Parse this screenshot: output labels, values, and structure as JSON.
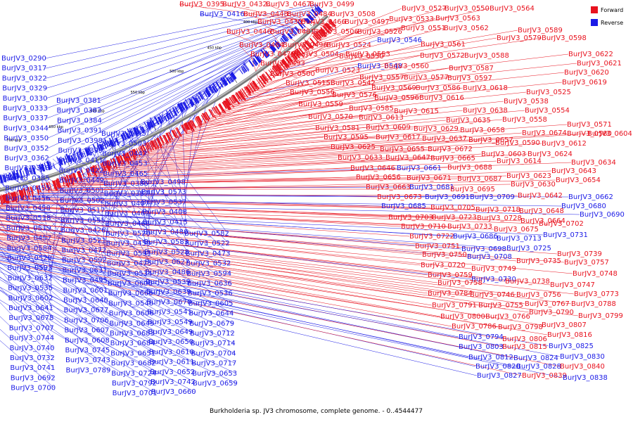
{
  "caption": "Burkholderia sp. JV3 chromosome, complete genome. - 0..4544477",
  "legend": [
    {
      "label": "Forward",
      "color": "#e8121e"
    },
    {
      "label": "Reverse",
      "color": "#1a1ae6"
    }
  ],
  "ticks": [
    "350 kbp",
    "400 kbp",
    "450 kbp",
    "500 kbp",
    "550 kbp",
    "600 kbp",
    "650 kbp",
    "700 kbp",
    "750 kbp",
    "800 kbp",
    "850 kbp",
    "900 kbp"
  ],
  "labels_right": [
    {
      "t": "BurJV3_0395",
      "s": "f"
    },
    {
      "t": "BurJV3_0432",
      "s": "f"
    },
    {
      "t": "BurJV3_0467",
      "s": "f"
    },
    {
      "t": "BurJV3_0499",
      "s": "f"
    },
    {
      "t": "BurJV3_0416",
      "s": "r"
    },
    {
      "t": "BurJV3_0448",
      "s": "f"
    },
    {
      "t": "BurJV3_0484",
      "s": "f"
    },
    {
      "t": "BurJV3_0508",
      "s": "f"
    },
    {
      "t": "BurJV3_0527",
      "s": "f"
    },
    {
      "t": "BurJV3_0550",
      "s": "f"
    },
    {
      "t": "BurJV3_0564",
      "s": "f"
    },
    {
      "t": "BurJV3_0430",
      "s": "f"
    },
    {
      "t": "BurJV3_0466",
      "s": "f"
    },
    {
      "t": "BurJV3_0497",
      "s": "f"
    },
    {
      "t": "BurJV3_0533",
      "s": "f"
    },
    {
      "t": "BurJV3_0563",
      "s": "f"
    },
    {
      "t": "BurJV3_0446",
      "s": "f"
    },
    {
      "t": "BurJV3_0481",
      "s": "f"
    },
    {
      "t": "BurJV3_0506",
      "s": "f"
    },
    {
      "t": "BurJV3_0526",
      "s": "f"
    },
    {
      "t": "BurJV3_0551",
      "s": "f"
    },
    {
      "t": "BurJV3_0562",
      "s": "f"
    },
    {
      "t": "BurJV3_0589",
      "s": "f"
    },
    {
      "t": "BurJV3_0546",
      "s": "r"
    },
    {
      "t": "BurJV3_0579",
      "s": "f"
    },
    {
      "t": "BurJV3_0598",
      "s": "f"
    },
    {
      "t": "BurJV3_0464",
      "s": "f"
    },
    {
      "t": "BurJV3_0496",
      "s": "f"
    },
    {
      "t": "BurJV3_0524",
      "s": "f"
    },
    {
      "t": "BurJV3_0561",
      "s": "f"
    },
    {
      "t": "BurJV3_0479",
      "s": "f"
    },
    {
      "t": "BurJV3_0504",
      "s": "f"
    },
    {
      "t": "BurJV3_0553",
      "s": "f"
    },
    {
      "t": "BurJV3_0622",
      "s": "f"
    },
    {
      "t": "BurJV3_0530",
      "s": "f"
    },
    {
      "t": "BurJV3_0572",
      "s": "f"
    },
    {
      "t": "BurJV3_0588",
      "s": "f"
    },
    {
      "t": "BurJV3_0621",
      "s": "f"
    },
    {
      "t": "BurJV3_0493",
      "s": "f"
    },
    {
      "t": "BurJV3_0548",
      "s": "r"
    },
    {
      "t": "BurJV3_0560",
      "s": "f"
    },
    {
      "t": "BurJV3_0587",
      "s": "f"
    },
    {
      "t": "BurJV3_0620",
      "s": "f"
    },
    {
      "t": "BurJV3_0500",
      "s": "f"
    },
    {
      "t": "BurJV3_0523",
      "s": "f"
    },
    {
      "t": "BurJV3_0557",
      "s": "f"
    },
    {
      "t": "BurJV3_0577",
      "s": "f"
    },
    {
      "t": "BurJV3_0597",
      "s": "f"
    },
    {
      "t": "BurJV3_0619",
      "s": "f"
    },
    {
      "t": "BurJV3_0515",
      "s": "f"
    },
    {
      "t": "BurJV3_0542",
      "s": "f"
    },
    {
      "t": "BurJV3_0569",
      "s": "f"
    },
    {
      "t": "BurJV3_0586",
      "s": "f"
    },
    {
      "t": "BurJV3_0618",
      "s": "f"
    },
    {
      "t": "BurJV3_0525",
      "s": "f"
    },
    {
      "t": "BurJV3_0556",
      "s": "f"
    },
    {
      "t": "BurJV3_0576",
      "s": "f"
    },
    {
      "t": "BurJV3_0596",
      "s": "f"
    },
    {
      "t": "BurJV3_0616",
      "s": "f"
    },
    {
      "t": "BurJV3_0538",
      "s": "f"
    },
    {
      "t": "BurJV3_0559",
      "s": "f"
    },
    {
      "t": "BurJV3_0585",
      "s": "f"
    },
    {
      "t": "BurJV3_0615",
      "s": "f"
    },
    {
      "t": "BurJV3_0638",
      "s": "f"
    },
    {
      "t": "BurJV3_0554",
      "s": "f"
    },
    {
      "t": "BurJV3_0570",
      "s": "f"
    },
    {
      "t": "BurJV3_0613",
      "s": "f"
    },
    {
      "t": "BurJV3_0635",
      "s": "f"
    },
    {
      "t": "BurJV3_0558",
      "s": "f"
    },
    {
      "t": "BurJV3_0581",
      "s": "f"
    },
    {
      "t": "BurJV3_0609",
      "s": "f"
    },
    {
      "t": "BurJV3_0629",
      "s": "f"
    },
    {
      "t": "BurJV3_0658",
      "s": "f"
    },
    {
      "t": "BurJV3_0571",
      "s": "f"
    },
    {
      "t": "BurJV3_0595",
      "s": "f"
    },
    {
      "t": "BurJV3_0617",
      "s": "f"
    },
    {
      "t": "BurJV3_0637",
      "s": "f"
    },
    {
      "t": "BurJV3_0657",
      "s": "f"
    },
    {
      "t": "BurJV3_0674",
      "s": "f"
    },
    {
      "t": "BurJV3_0580",
      "s": "f"
    },
    {
      "t": "BurJV3_0604",
      "s": "f"
    },
    {
      "t": "BurJV3_0625",
      "s": "f"
    },
    {
      "t": "BurJV3_0655",
      "s": "f"
    },
    {
      "t": "BurJV3_0672",
      "s": "f"
    },
    {
      "t": "BurJV3_0590",
      "s": "f"
    },
    {
      "t": "BurJV3_0612",
      "s": "f"
    },
    {
      "t": "BurJV3_0633",
      "s": "f"
    },
    {
      "t": "BurJV3_0647",
      "s": "f"
    },
    {
      "t": "BurJV3_0665",
      "s": "f"
    },
    {
      "t": "BurJV3_0603",
      "s": "f"
    },
    {
      "t": "BurJV3_0624",
      "s": "f"
    },
    {
      "t": "BurJV3_0646",
      "s": "f"
    },
    {
      "t": "BurJV3_0661",
      "s": "r"
    },
    {
      "t": "BurJV3_0688",
      "s": "f"
    },
    {
      "t": "BurJV3_0614",
      "s": "f"
    },
    {
      "t": "BurJV3_0634",
      "s": "f"
    },
    {
      "t": "BurJV3_0656",
      "s": "f"
    },
    {
      "t": "BurJV3_0671",
      "s": "f"
    },
    {
      "t": "BurJV3_0687",
      "s": "f"
    },
    {
      "t": "BurJV3_0623",
      "s": "f"
    },
    {
      "t": "BurJV3_0643",
      "s": "f"
    },
    {
      "t": "BurJV3_0663",
      "s": "f"
    },
    {
      "t": "BurJV3_0681",
      "s": "r"
    },
    {
      "t": "BurJV3_0695",
      "s": "f"
    },
    {
      "t": "BurJV3_0630",
      "s": "f"
    },
    {
      "t": "BurJV3_0654",
      "s": "f"
    },
    {
      "t": "BurJV3_0673",
      "s": "f"
    },
    {
      "t": "BurJV3_0691",
      "s": "r"
    },
    {
      "t": "BurJV3_0709",
      "s": "r"
    },
    {
      "t": "BurJV3_0642",
      "s": "f"
    },
    {
      "t": "BurJV3_0662",
      "s": "r"
    },
    {
      "t": "BurJV3_0685",
      "s": "r"
    },
    {
      "t": "BurJV3_0705",
      "s": "f"
    },
    {
      "t": "BurJV3_0718",
      "s": "f"
    },
    {
      "t": "BurJV3_0648",
      "s": "f"
    },
    {
      "t": "BurJV3_0680",
      "s": "r"
    },
    {
      "t": "BurJV3_0703",
      "s": "f"
    },
    {
      "t": "BurJV3_0723",
      "s": "f"
    },
    {
      "t": "BurJV3_0728",
      "s": "f"
    },
    {
      "t": "BurJV3_0664",
      "s": "f"
    },
    {
      "t": "BurJV3_0690",
      "s": "r"
    },
    {
      "t": "BurJV3_0710",
      "s": "f"
    },
    {
      "t": "BurJV3_0733",
      "s": "f"
    },
    {
      "t": "BurJV3_0675",
      "s": "f"
    },
    {
      "t": "BurJV3_0702",
      "s": "f"
    },
    {
      "t": "BurJV3_0722",
      "s": "f"
    },
    {
      "t": "BurJV3_0686",
      "s": "r"
    },
    {
      "t": "BurJV3_0713",
      "s": "r"
    },
    {
      "t": "BurJV3_0731",
      "s": "r"
    },
    {
      "t": "BurJV3_0751",
      "s": "f"
    },
    {
      "t": "BurJV3_0698",
      "s": "r"
    },
    {
      "t": "BurJV3_0725",
      "s": "r"
    },
    {
      "t": "BurJV3_0739",
      "s": "f"
    },
    {
      "t": "BurJV3_0750",
      "s": "f"
    },
    {
      "t": "BurJV3_0708",
      "s": "r"
    },
    {
      "t": "BurJV3_0735",
      "s": "f"
    },
    {
      "t": "BurJV3_0757",
      "s": "f"
    },
    {
      "t": "BurJV3_0720",
      "s": "f"
    },
    {
      "t": "BurJV3_0749",
      "s": "f"
    },
    {
      "t": "BurJV3_0748",
      "s": "f"
    },
    {
      "t": "BurJV3_0759",
      "s": "f"
    },
    {
      "t": "BurJV3_0730",
      "s": "r"
    },
    {
      "t": "BurJV3_0738",
      "s": "f"
    },
    {
      "t": "BurJV3_0747",
      "s": "f"
    },
    {
      "t": "BurJV3_0758",
      "s": "f"
    },
    {
      "t": "BurJV3_0784",
      "s": "f"
    },
    {
      "t": "BurJV3_0746",
      "s": "f"
    },
    {
      "t": "BurJV3_0756",
      "s": "f"
    },
    {
      "t": "BurJV3_0773",
      "s": "f"
    },
    {
      "t": "BurJV3_0791",
      "s": "f"
    },
    {
      "t": "BurJV3_0755",
      "s": "f"
    },
    {
      "t": "BurJV3_0767",
      "s": "f"
    },
    {
      "t": "BurJV3_0788",
      "s": "f"
    },
    {
      "t": "BurJV3_0800",
      "s": "f"
    },
    {
      "t": "BurJV3_0766",
      "s": "f"
    },
    {
      "t": "BurJV3_0790",
      "s": "f"
    },
    {
      "t": "BurJV3_0799",
      "s": "f"
    },
    {
      "t": "BurJV3_0786",
      "s": "f"
    },
    {
      "t": "BurJV3_0798",
      "s": "f"
    },
    {
      "t": "BurJV3_0807",
      "s": "f"
    },
    {
      "t": "BurJV3_0794",
      "s": "r"
    },
    {
      "t": "BurJV3_0806",
      "s": "f"
    },
    {
      "t": "BurJV3_0816",
      "s": "f"
    },
    {
      "t": "BurJV3_0803",
      "s": "r"
    },
    {
      "t": "BurJV3_0815",
      "s": "f"
    },
    {
      "t": "BurJV3_0825",
      "s": "r"
    },
    {
      "t": "BurJV3_0812",
      "s": "r"
    },
    {
      "t": "BurJV3_0824",
      "s": "r"
    },
    {
      "t": "BurJV3_0830",
      "s": "r"
    },
    {
      "t": "BurJV3_0820",
      "s": "r"
    },
    {
      "t": "BurJV3_0828",
      "s": "r"
    },
    {
      "t": "BurJV3_0840",
      "s": "f"
    },
    {
      "t": "BurJV3_0827",
      "s": "r"
    },
    {
      "t": "BurJV3_0839",
      "s": "f"
    },
    {
      "t": "BurJV3_0838",
      "s": "r"
    }
  ],
  "labels_left": [
    "BurJV3_0290",
    "BurJV3_0317",
    "BurJV3_0322",
    "BurJV3_0329",
    "BurJV3_0330",
    "BurJV3_0381",
    "BurJV3_0333",
    "BurJV3_0383",
    "BurJV3_0337",
    "BurJV3_0384",
    "BurJV3_0344",
    "BurJV3_0391",
    "BurJV3_0445",
    "BurJV3_0350",
    "BurJV3_0398",
    "BurJV3_0503",
    "BurJV3_0352",
    "BurJV3_0399",
    "BurJV3_0447",
    "BurJV3_0362",
    "BurJV3_0411",
    "BurJV3_0453",
    "BurJV3_0368",
    "BurJV3_0422",
    "BurJV3_0465",
    "BurJV3_0385",
    "BurJV3_0449",
    "BurJV3_0498",
    "BurJV3_0386",
    "BurJV3_0455",
    "BurJV3_0501",
    "BurJV3_0573",
    "BurJV3_0387",
    "BurJV3_0456",
    "BurJV3_0502",
    "BurJV3_0537",
    "BurJV3_0407",
    "BurJV3_0458",
    "BurJV3_0517",
    "BurJV3_0408",
    "BurJV3_0462",
    "BurJV3_0518",
    "BurJV3_0555",
    "BurJV3_0415",
    "BurJV3_0468",
    "BurJV3_0519",
    "BurJV3_0426",
    "BurJV3_0480",
    "BurJV3_0520",
    "BurJV3_0582",
    "BurJV3_0457",
    "BurJV3_0521",
    "BurJV3_0583",
    "BurJV3_0459",
    "BurJV3_0522",
    "BurJV3_0584",
    "BurJV3_0472",
    "BurJV3_0528",
    "BurJV3_0591",
    "BurJV3_0473",
    "BurJV3_0529",
    "BurJV3_0592",
    "BurJV3_0627",
    "BurJV3_0475",
    "BurJV3_0532",
    "BurJV3_0593",
    "BurJV3_0631",
    "BurJV3_0486",
    "BurJV3_0534",
    "BurJV3_0594",
    "BurJV3_0632",
    "BurJV3_0495",
    "BurJV3_0539",
    "BurJV3_0600",
    "BurJV3_0636",
    "BurJV3_0535",
    "BurJV3_0601",
    "BurJV3_0639",
    "BurJV3_0666",
    "BurJV3_0536",
    "BurJV3_0602",
    "BurJV3_0640",
    "BurJV3_0670",
    "BurJV3_0540",
    "BurJV3_0605",
    "BurJV3_0641",
    "BurJV3_0677",
    "BurJV3_0541",
    "BurJV3_0606",
    "BurJV3_0644",
    "BurJV3_0678",
    "BurJV3_0706",
    "BurJV3_0549",
    "BurJV3_0645",
    "BurJV3_0679",
    "BurJV3_0707",
    "BurJV3_0607",
    "BurJV3_0649",
    "BurJV3_0683",
    "BurJV3_0712",
    "BurJV3_0744",
    "BurJV3_0608",
    "BurJV3_0650",
    "BurJV3_0684",
    "BurJV3_0714",
    "BurJV3_0740",
    "BurJV3_0745",
    "BurJV3_0610",
    "BurJV3_0651",
    "BurJV3_0704",
    "BurJV3_0732",
    "BurJV3_0743",
    "BurJV3_0611",
    "BurJV3_0682",
    "BurJV3_0717",
    "BurJV3_0741",
    "BurJV3_0789",
    "BurJV3_0652",
    "BurJV3_0724",
    "BurJV3_0653",
    "BurJV3_0692",
    "BurJV3_0742",
    "BurJV3_0792",
    "BurJV3_0659",
    "BurJV3_0700",
    "BurJV3_0660",
    "BurJV3_0701"
  ]
}
